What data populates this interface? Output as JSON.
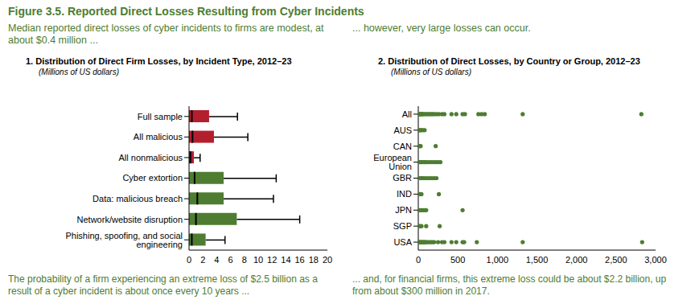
{
  "title": "Figure 3.5. Reported Direct Losses Resulting from Cyber Incidents",
  "chart_data": [
    {
      "type": "box",
      "orientation": "horizontal",
      "title": "1. Distribution of Direct Firm Losses, by Incident Type, 2012–23",
      "subtitle": "(Millions of US dollars)",
      "annotations": [
        "Median reported direct losses of cyber incidents to firms are modest, at about $0.4 million ...",
        "The probability of a firm experiencing an extreme loss of $2.5 billion as a result of a cyber incident is about once every 10 years ..."
      ],
      "categories": [
        "Full sample",
        "All malicious",
        "All nonmalicious",
        "Cyber extortion",
        "Data: malicious breach",
        "Network/website disruption",
        "Phishing, spoofing, and social engineering"
      ],
      "box_low": [
        0,
        0,
        0,
        0,
        0,
        0,
        0
      ],
      "median": [
        0.4,
        0.5,
        0.2,
        0.8,
        1.2,
        1.0,
        0.4
      ],
      "box_high": [
        2.9,
        3.6,
        0.7,
        5.0,
        5.0,
        6.9,
        2.4
      ],
      "whisker_high": [
        7.0,
        8.5,
        1.6,
        12.6,
        12.2,
        16.0,
        5.2
      ],
      "colors": [
        "#b41f2e",
        "#b41f2e",
        "#b41f2e",
        "#4e7d32",
        "#4e7d32",
        "#4e7d32",
        "#4e7d32"
      ],
      "xlim": [
        0,
        20
      ],
      "xticks": [
        0,
        2,
        4,
        6,
        8,
        10,
        12,
        14,
        16,
        18,
        20
      ]
    },
    {
      "type": "scatter",
      "title": "2. Distribution of Direct Losses, by Country or Group, 2012–23",
      "subtitle": "(Millions of US dollars)",
      "annotations": [
        "... however, very large losses can occur.",
        "... and, for financial firms, this extreme loss could be about $2.2 billion, up from about $300 million in 2017."
      ],
      "categories": [
        "All",
        "AUS",
        "CAN",
        "European Union",
        "GBR",
        "IND",
        "JPN",
        "SGP",
        "USA"
      ],
      "values": [
        [
          5,
          10,
          20,
          30,
          40,
          50,
          60,
          80,
          100,
          120,
          140,
          160,
          180,
          200,
          230,
          260,
          300,
          330,
          420,
          480,
          560,
          590,
          760,
          800,
          840,
          1320,
          2820
        ],
        [
          5,
          15,
          25,
          40,
          60,
          80
        ],
        [
          5,
          15,
          30,
          220
        ],
        [
          5,
          20,
          40,
          60,
          80,
          100,
          130,
          160,
          190,
          220,
          250,
          280
        ],
        [
          5,
          20,
          40,
          60,
          80,
          110,
          140,
          170,
          200,
          230
        ],
        [
          5,
          20,
          40,
          260
        ],
        [
          5,
          20,
          40,
          60,
          80,
          100,
          560
        ],
        [
          5,
          20,
          40,
          100,
          270
        ],
        [
          5,
          10,
          15,
          20,
          30,
          40,
          50,
          60,
          70,
          80,
          90,
          100,
          120,
          140,
          160,
          180,
          200,
          250,
          300,
          330,
          420,
          480,
          560,
          580,
          740,
          1320,
          2830
        ]
      ],
      "color": "#4e7d32",
      "xlim": [
        0,
        3000
      ],
      "xticks": [
        0,
        500,
        {
          "value": 1000,
          "label": "1,000"
        },
        {
          "value": 1500,
          "label": "1,500"
        },
        {
          "value": 2000,
          "label": "2,000"
        },
        {
          "value": 2500,
          "label": "2,500"
        },
        {
          "value": 3000,
          "label": "3,000"
        }
      ]
    }
  ]
}
